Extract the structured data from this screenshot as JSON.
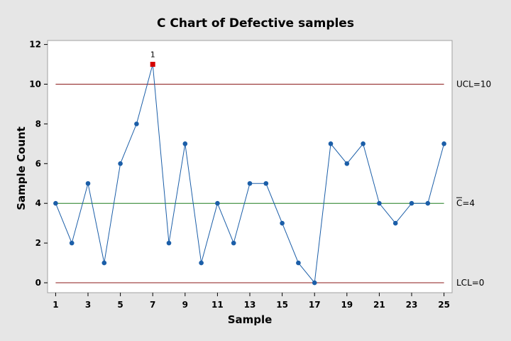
{
  "chart_data": {
    "type": "line",
    "title": "C Chart of Defective samples",
    "xlabel": "Sample",
    "ylabel": "Sample Count",
    "x": [
      1,
      2,
      3,
      4,
      5,
      6,
      7,
      8,
      9,
      10,
      11,
      12,
      13,
      14,
      15,
      16,
      17,
      18,
      19,
      20,
      21,
      22,
      23,
      24,
      25
    ],
    "values": [
      4,
      2,
      5,
      1,
      6,
      8,
      11,
      2,
      7,
      1,
      4,
      2,
      5,
      5,
      3,
      1,
      0,
      7,
      6,
      7,
      4,
      3,
      4,
      4,
      7
    ],
    "xlim": [
      0.5,
      25.5
    ],
    "ylim": [
      -0.5,
      12.2
    ],
    "x_ticks": [
      1,
      3,
      5,
      7,
      9,
      11,
      13,
      15,
      17,
      19,
      21,
      23,
      25
    ],
    "y_ticks": [
      0,
      2,
      4,
      6,
      8,
      10,
      12
    ],
    "grid": false,
    "reference_lines": [
      {
        "label": "UCL=10",
        "value": 10,
        "color": "#8b1a1a"
      },
      {
        "label": "C=4",
        "value": 4,
        "color": "#1e7b1e"
      },
      {
        "label": "LCL=0",
        "value": 0,
        "color": "#8b1a1a"
      }
    ],
    "flagged_points": [
      {
        "x": 7,
        "value": 11,
        "flag": "1"
      }
    ],
    "colors": {
      "series": "#1b5ea8",
      "flagged": "#d40000",
      "plot_background": "#ffffff",
      "figure_background": "#e6e6e6"
    }
  }
}
